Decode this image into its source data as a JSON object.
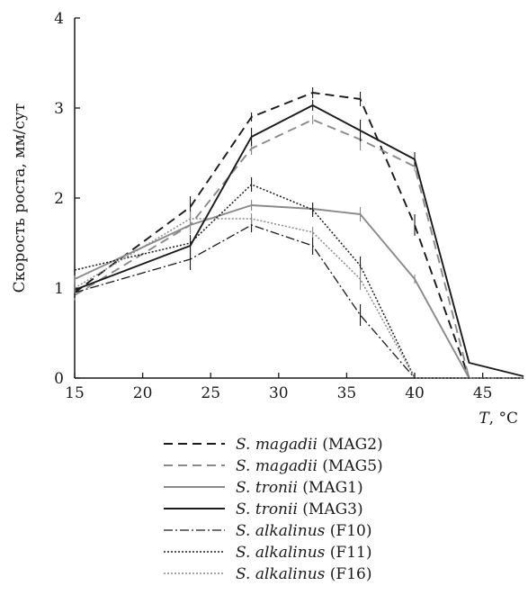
{
  "chart_data": {
    "type": "line",
    "ylabel": "Скорость роста, мм/сут",
    "xlabel_var": "T",
    "xlabel_unit": ", °C",
    "xlim": [
      15,
      48
    ],
    "ylim": [
      0,
      4
    ],
    "xticks": [
      15,
      20,
      25,
      30,
      35,
      40,
      45
    ],
    "yticks": [
      0,
      1,
      2,
      3,
      4
    ],
    "grid": false,
    "legend_position": "bottom",
    "series": [
      {
        "genus": "S.",
        "species": "magadii",
        "strain": " (MAG2)",
        "color": "#1a1a1a",
        "dash": "10,6",
        "width": 1.9,
        "x": [
          15,
          23.5,
          28,
          32.5,
          36,
          40,
          44,
          48
        ],
        "y": [
          0.95,
          1.9,
          2.9,
          3.17,
          3.1,
          1.7,
          0.0,
          0.0
        ],
        "err": [
          0.1,
          0.12,
          0.05,
          0.06,
          0.08,
          0.12,
          0,
          0
        ]
      },
      {
        "genus": "S.",
        "species": "magadii",
        "strain": " (MAG5)",
        "color": "#8a8a8a",
        "dash": "10,6",
        "width": 1.9,
        "x": [
          15,
          23.5,
          28,
          32.5,
          36,
          40,
          44,
          48
        ],
        "y": [
          0.92,
          1.7,
          2.55,
          2.87,
          2.65,
          2.35,
          0.0,
          0.0
        ],
        "err": [
          0.06,
          0.1,
          0.07,
          0.05,
          0.12,
          0.05,
          0,
          0
        ]
      },
      {
        "genus": "S.",
        "species": "tronii",
        "strain": " (MAG1)",
        "color": "#8a8a8a",
        "dash": "",
        "width": 1.9,
        "x": [
          15,
          23.5,
          28,
          32.5,
          36,
          40,
          44,
          48
        ],
        "y": [
          1.1,
          1.7,
          1.92,
          1.88,
          1.82,
          1.1,
          0.0,
          0.0
        ],
        "err": [
          0.1,
          0.08,
          0.06,
          0.06,
          0.08,
          0.05,
          0,
          0
        ]
      },
      {
        "genus": "S.",
        "species": "tronii",
        "strain": " (MAG3)",
        "color": "#1a1a1a",
        "dash": "",
        "width": 1.9,
        "x": [
          15,
          23.5,
          28,
          32.5,
          36,
          40,
          44,
          48
        ],
        "y": [
          0.98,
          1.47,
          2.68,
          3.03,
          2.75,
          2.43,
          0.17,
          0.02
        ],
        "err": [
          0.06,
          0.12,
          0.1,
          0.06,
          0.12,
          0.08,
          0,
          0
        ]
      },
      {
        "genus": "S.",
        "species": "alkalinus",
        "strain": " (F10)",
        "color": "#1a1a1a",
        "dash": "10,3,2,3",
        "width": 1.3,
        "x": [
          15,
          23.5,
          28,
          32.5,
          36,
          40,
          44,
          48
        ],
        "y": [
          0.95,
          1.32,
          1.7,
          1.47,
          0.7,
          0.0,
          0.0,
          0.0
        ],
        "err": [
          0.06,
          0.12,
          0.08,
          0.1,
          0.12,
          0,
          0,
          0
        ]
      },
      {
        "genus": "S.",
        "species": "alkalinus",
        "strain": " (F11)",
        "color": "#1a1a1a",
        "dash": "2,2",
        "width": 1.5,
        "x": [
          15,
          23.5,
          28,
          32.5,
          36,
          40,
          44,
          48
        ],
        "y": [
          1.2,
          1.5,
          2.15,
          1.87,
          1.25,
          0.0,
          0.0,
          0.0
        ],
        "err": [
          0.06,
          0.06,
          0.08,
          0.08,
          0.1,
          0,
          0,
          0
        ]
      },
      {
        "genus": "S.",
        "species": "alkalinus",
        "strain": " (F16)",
        "color": "#8a8a8a",
        "dash": "2,2",
        "width": 1.5,
        "x": [
          15,
          23.5,
          28,
          32.5,
          36,
          40,
          44,
          48
        ],
        "y": [
          1.0,
          1.77,
          1.77,
          1.62,
          1.1,
          0.0,
          0.0,
          0.0
        ],
        "err": [
          0.06,
          0.08,
          0.06,
          0.06,
          0.12,
          0,
          0,
          0
        ]
      }
    ]
  }
}
